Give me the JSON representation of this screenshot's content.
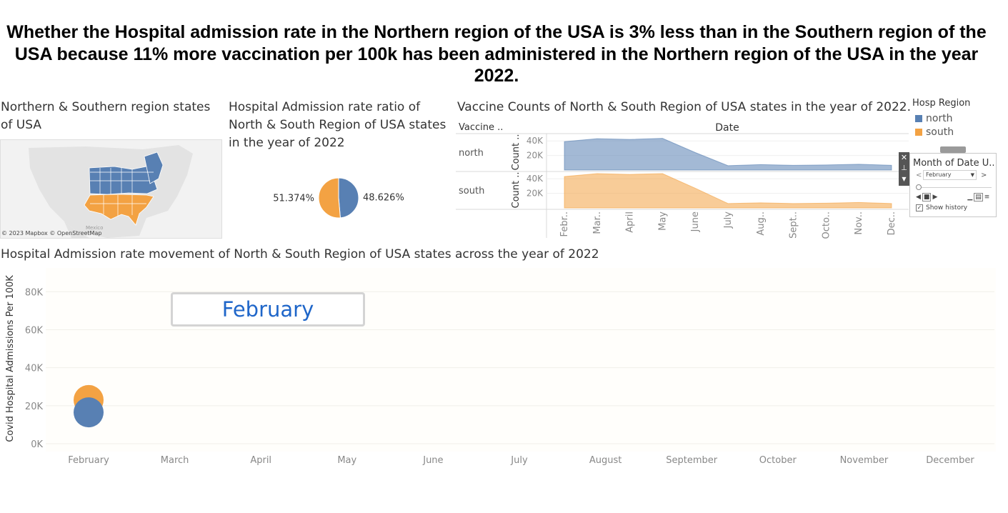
{
  "title": "Whether the Hospital admission rate in the Northern region of the USA is 3% less than in the Southern region of the USA because 11% more vaccination per 100k has been administered in the Northern region of the USA in the year 2022.",
  "colors": {
    "north": "#5880b3",
    "south": "#f3a243",
    "accent": "#1f66c9"
  },
  "map_panel": {
    "title": "Northern & Southern region states of USA",
    "attribution": "© 2023 Mapbox © OpenStreetMap",
    "country_label": "Mexico"
  },
  "legend": {
    "title": "Hosp Region",
    "items": [
      {
        "label": "north"
      },
      {
        "label": "south"
      }
    ]
  },
  "filter": {
    "title": "Month of Date U..",
    "selected": "February",
    "show_history_label": "Show history",
    "show_history_checked": true,
    "slider_position": 0
  },
  "month_badge": "February",
  "chart_data": [
    {
      "type": "pie",
      "title": "Hospital Admission rate ratio of North & South Region of USA states in the year of 2022",
      "series": [
        {
          "name": "north",
          "value": 48.626,
          "label": "48.626%"
        },
        {
          "name": "south",
          "value": 51.374,
          "label": "51.374%"
        }
      ]
    },
    {
      "type": "area",
      "title": "Vaccine Counts of North & South Region of USA states in the year of 2022.",
      "row_header": "Vaccine ..",
      "column_header": "Date",
      "ylabel": "Count ..",
      "ylim": [
        0,
        50000
      ],
      "yticks": [
        20000,
        40000
      ],
      "ytick_labels": [
        "20K",
        "40K"
      ],
      "categories": [
        "Febr..",
        "Mar..",
        "April",
        "May",
        "June",
        "July",
        "Aug..",
        "Sept..",
        "Octo..",
        "Nov..",
        "Dec.."
      ],
      "series": [
        {
          "name": "north",
          "values": [
            39000,
            43000,
            42000,
            43500,
            24000,
            6000,
            7500,
            6500,
            7000,
            8000,
            6500
          ]
        },
        {
          "name": "south",
          "values": [
            43000,
            47000,
            46000,
            47000,
            27000,
            6000,
            7000,
            6000,
            6500,
            7500,
            6000
          ]
        }
      ]
    },
    {
      "type": "scatter",
      "title": "Hospital Admission rate movement of North & South Region of USA states across the year of 2022",
      "ylabel": "Covid Hospital Admissions Per 100K",
      "xlabel": "",
      "ylim": [
        0,
        88000
      ],
      "yticks": [
        0,
        20000,
        40000,
        60000,
        80000
      ],
      "ytick_labels": [
        "0K",
        "20K",
        "40K",
        "60K",
        "80K"
      ],
      "x": [
        "February",
        "March",
        "April",
        "May",
        "June",
        "July",
        "August",
        "September",
        "October",
        "November",
        "December"
      ],
      "series": [
        {
          "name": "south",
          "points": [
            {
              "x": "February",
              "y": 23000
            }
          ]
        },
        {
          "name": "north",
          "points": [
            {
              "x": "February",
              "y": 16500
            }
          ]
        }
      ]
    }
  ]
}
